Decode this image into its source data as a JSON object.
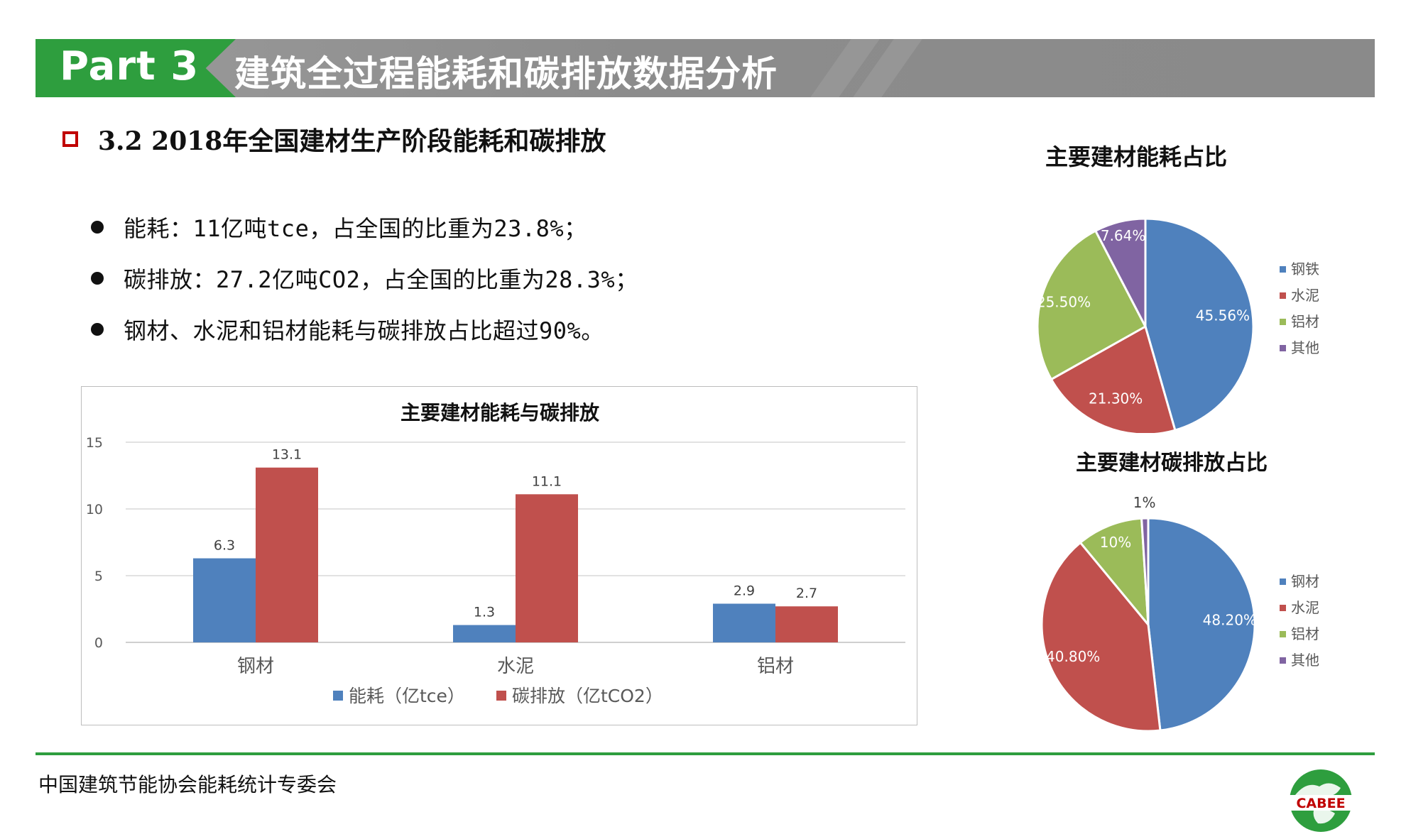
{
  "header": {
    "part": "Part 3",
    "title": "建筑全过程能耗和碳排放数据分析"
  },
  "section": {
    "title": "3.2 2018年全国建材生产阶段能耗和碳排放"
  },
  "bullets": [
    "能耗：11亿吨tce，占全国的比重为23.8%；",
    "碳排放：27.2亿吨CO2，占全国的比重为28.3%；",
    "钢材、水泥和铝材能耗与碳排放占比超过90%。"
  ],
  "footer": {
    "org": "中国建筑节能协会能耗统计专委会",
    "logo_text": "CABEE"
  },
  "colors": {
    "blue": "#4f81bd",
    "red": "#c0504d",
    "green": "#9bbb59",
    "purple": "#8064a2",
    "brand_green": "#2e9e3e",
    "checkbox_red": "#c00000"
  },
  "chart_data": [
    {
      "type": "bar",
      "title": "主要建材能耗与碳排放",
      "categories": [
        "钢材",
        "水泥",
        "铝材"
      ],
      "series": [
        {
          "name": "能耗（亿tce）",
          "values": [
            6.3,
            1.3,
            2.9
          ],
          "labels": [
            "6.3",
            "1.3",
            "2.9"
          ]
        },
        {
          "name": "碳排放（亿tCO2）",
          "values": [
            13.1,
            11.1,
            2.7
          ],
          "labels": [
            "13.1",
            "11.1",
            "2.7"
          ]
        }
      ],
      "ylim": [
        0,
        15
      ],
      "yticks": [
        "0",
        "5",
        "10",
        "15"
      ],
      "grid": true,
      "legend": "bottom"
    },
    {
      "type": "pie",
      "title": "主要建材能耗占比",
      "labels": [
        "钢铁",
        "水泥",
        "铝材",
        "其他"
      ],
      "values": [
        45.56,
        21.3,
        25.5,
        7.64
      ],
      "value_labels": [
        "45.56%",
        "21.30%",
        "25.50%",
        "7.64%"
      ],
      "legend": "right"
    },
    {
      "type": "pie",
      "title": "主要建材碳排放占比",
      "labels": [
        "钢材",
        "水泥",
        "铝材",
        "其他"
      ],
      "values": [
        48.2,
        40.8,
        10,
        1
      ],
      "value_labels": [
        "48.20%",
        "40.80%",
        "10%",
        "1%"
      ],
      "legend": "right"
    }
  ]
}
